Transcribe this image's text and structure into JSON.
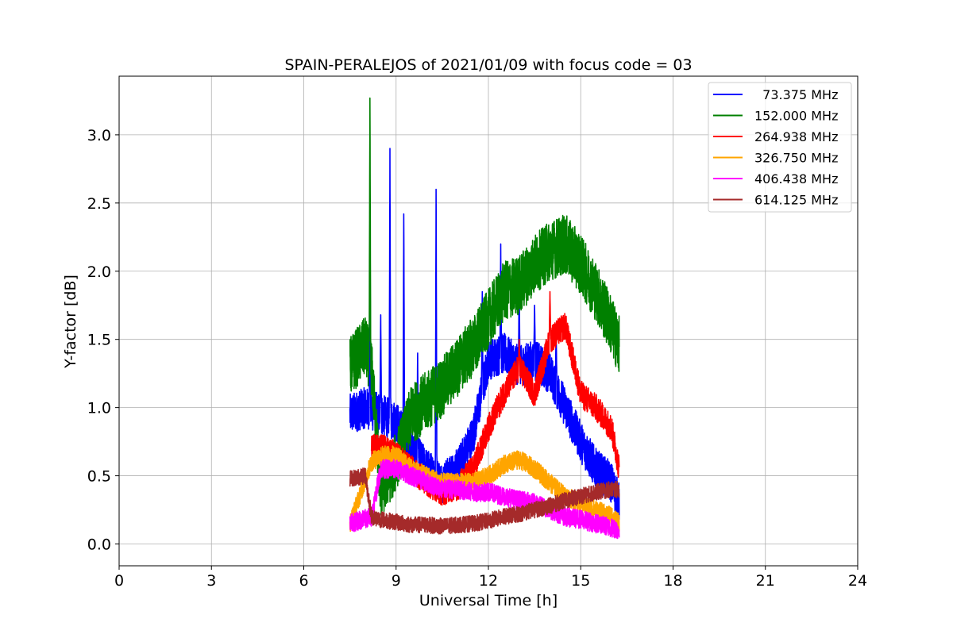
{
  "chart_data": {
    "type": "line",
    "title": "SPAIN-PERALEJOS of 2021/01/09 with focus code = 03",
    "xlabel": "Universal Time [h]",
    "ylabel": "Y-factor [dB]",
    "xlim": [
      0,
      24
    ],
    "ylim": [
      -0.16,
      3.43
    ],
    "xticks": [
      "0",
      "3",
      "6",
      "9",
      "12",
      "15",
      "18",
      "21",
      "24"
    ],
    "yticks": [
      "0.0",
      "0.5",
      "1.0",
      "1.5",
      "2.0",
      "2.5",
      "3.0"
    ],
    "grid": true,
    "legend_position": "top-right",
    "series": [
      {
        "name": "  73.375 MHz",
        "color": "#0000ff",
        "x": [
          7.5,
          8.0,
          8.5,
          9.0,
          9.5,
          10.0,
          10.5,
          11.0,
          11.5,
          12.0,
          12.5,
          13.0,
          13.5,
          14.0,
          14.5,
          15.0,
          15.5,
          16.0,
          16.25
        ],
        "y": [
          0.95,
          1.0,
          0.95,
          0.9,
          0.7,
          0.55,
          0.45,
          0.55,
          0.8,
          1.35,
          1.4,
          1.3,
          1.35,
          1.25,
          1.0,
          0.75,
          0.55,
          0.45,
          0.3
        ],
        "amp": 0.15,
        "spikes": [
          [
            8.15,
            1.85
          ],
          [
            8.5,
            1.68
          ],
          [
            8.8,
            2.9
          ],
          [
            9.25,
            2.42
          ],
          [
            9.7,
            1.4
          ],
          [
            10.3,
            2.6
          ],
          [
            11.8,
            1.85
          ],
          [
            12.4,
            2.2
          ],
          [
            13.0,
            1.95
          ],
          [
            13.5,
            1.75
          ],
          [
            14.2,
            1.6
          ]
        ]
      },
      {
        "name": "152.000 MHz",
        "color": "#008000",
        "x": [
          7.5,
          8.0,
          8.2,
          8.5,
          9.0,
          9.5,
          10.0,
          10.5,
          11.0,
          11.5,
          12.0,
          12.5,
          13.0,
          13.5,
          14.0,
          14.5,
          15.0,
          15.5,
          16.0,
          16.25
        ],
        "y": [
          1.3,
          1.45,
          1.3,
          0.4,
          0.6,
          0.95,
          1.05,
          1.15,
          1.3,
          1.45,
          1.65,
          1.85,
          1.9,
          2.05,
          2.15,
          2.2,
          2.05,
          1.85,
          1.6,
          1.45
        ],
        "amp": 0.22,
        "spikes": [
          [
            8.15,
            3.27
          ],
          [
            9.3,
            0.6
          ]
        ]
      },
      {
        "name": "264.938 MHz",
        "color": "#ff0000",
        "x": [
          8.2,
          8.5,
          9.0,
          9.5,
          10.0,
          10.5,
          11.0,
          11.5,
          12.0,
          12.5,
          13.0,
          13.5,
          14.0,
          14.5,
          15.0,
          15.5,
          16.0,
          16.25
        ],
        "y": [
          0.7,
          0.72,
          0.65,
          0.55,
          0.45,
          0.38,
          0.42,
          0.55,
          0.85,
          1.1,
          1.3,
          1.1,
          1.5,
          1.6,
          1.1,
          1.0,
          0.85,
          0.55
        ],
        "amp": 0.1,
        "spikes": [
          [
            14.0,
            1.85
          ],
          [
            13.0,
            1.5
          ]
        ]
      },
      {
        "name": "326.750 MHz",
        "color": "#ffa500",
        "x": [
          7.5,
          8.2,
          8.5,
          9.0,
          9.5,
          10.0,
          10.5,
          11.0,
          11.5,
          12.0,
          12.5,
          13.0,
          13.5,
          14.0,
          14.5,
          15.0,
          15.5,
          16.0,
          16.25
        ],
        "y": [
          0.15,
          0.6,
          0.65,
          0.65,
          0.55,
          0.5,
          0.45,
          0.45,
          0.45,
          0.5,
          0.58,
          0.62,
          0.55,
          0.45,
          0.35,
          0.3,
          0.25,
          0.2,
          0.15
        ],
        "amp": 0.07,
        "spikes": []
      },
      {
        "name": "406.438 MHz",
        "color": "#ff00ff",
        "x": [
          7.5,
          8.2,
          8.5,
          9.0,
          9.5,
          10.0,
          10.5,
          11.0,
          11.5,
          12.0,
          12.5,
          13.0,
          13.5,
          14.0,
          14.5,
          15.0,
          15.5,
          16.0,
          16.25
        ],
        "y": [
          0.15,
          0.2,
          0.55,
          0.55,
          0.5,
          0.45,
          0.4,
          0.4,
          0.38,
          0.38,
          0.35,
          0.32,
          0.3,
          0.25,
          0.2,
          0.18,
          0.15,
          0.12,
          0.1
        ],
        "amp": 0.07,
        "spikes": []
      },
      {
        "name": "614.125 MHz",
        "color": "#a52a2a",
        "x": [
          7.5,
          8.0,
          8.2,
          8.5,
          9.0,
          9.5,
          10.0,
          10.5,
          11.0,
          11.5,
          12.0,
          12.5,
          13.0,
          13.5,
          14.0,
          14.5,
          15.0,
          15.5,
          16.0,
          16.25
        ],
        "y": [
          0.48,
          0.5,
          0.2,
          0.18,
          0.16,
          0.14,
          0.14,
          0.13,
          0.14,
          0.15,
          0.17,
          0.2,
          0.22,
          0.25,
          0.28,
          0.32,
          0.35,
          0.38,
          0.4,
          0.4
        ],
        "amp": 0.06,
        "spikes": []
      }
    ]
  }
}
